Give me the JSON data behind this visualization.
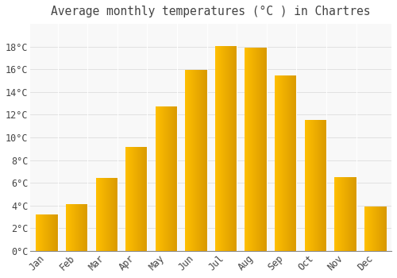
{
  "title": "Average monthly temperatures (°C ) in Chartres",
  "months": [
    "Jan",
    "Feb",
    "Mar",
    "Apr",
    "May",
    "Jun",
    "Jul",
    "Aug",
    "Sep",
    "Oct",
    "Nov",
    "Dec"
  ],
  "temperatures": [
    3.2,
    4.1,
    6.4,
    9.1,
    12.7,
    15.9,
    18.0,
    17.9,
    15.4,
    11.5,
    6.5,
    3.9
  ],
  "bar_color_left": "#FFB300",
  "bar_color_right": "#FFA000",
  "bar_color_mid": "#FFCA28",
  "background_color": "#FFFFFF",
  "plot_bg_color": "#F8F8F8",
  "grid_color": "#DDDDDD",
  "text_color": "#444444",
  "ylim": [
    0,
    20
  ],
  "ytick_values": [
    0,
    2,
    4,
    6,
    8,
    10,
    12,
    14,
    16,
    18
  ],
  "title_fontsize": 10.5,
  "tick_fontsize": 8.5
}
